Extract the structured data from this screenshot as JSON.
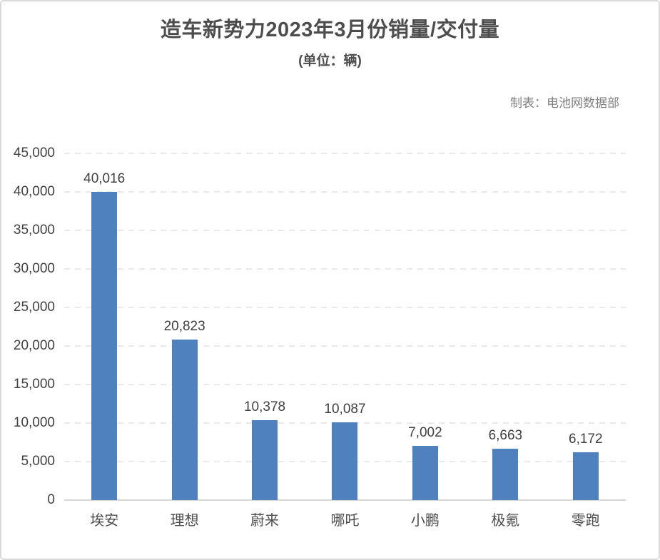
{
  "page": {
    "title": "造车新势力2023年3月份销量/交付量",
    "subtitle": "(单位：辆)",
    "credit": "制表：电池网数据部"
  },
  "colors": {
    "bar": "#4E81BD",
    "title_text": "#4D4D4D",
    "axis_text": "#404040",
    "credit_text": "#808080",
    "gridline": "#E9E9E9",
    "axis_line": "#D6D6D6",
    "frame_border": "#D9D9D9"
  },
  "chart_data": {
    "type": "bar",
    "title": "造车新势力2023年3月份销量/交付量",
    "subtitle": "(单位：辆)",
    "credit": "制表：电池网数据部",
    "categories": [
      "埃安",
      "理想",
      "蔚来",
      "哪吒",
      "小鹏",
      "极氪",
      "零跑"
    ],
    "values": [
      40016,
      20823,
      10378,
      10087,
      7002,
      6663,
      6172
    ],
    "value_labels": [
      "40,016",
      "20,823",
      "10,378",
      "10,087",
      "7,002",
      "6,663",
      "6,172"
    ],
    "xlabel": "",
    "ylabel": "",
    "ylim": [
      0,
      45000
    ],
    "ytick_step": 5000,
    "grid": "dashed-horizontal",
    "legend": "none",
    "data_labels": "above-bars"
  }
}
